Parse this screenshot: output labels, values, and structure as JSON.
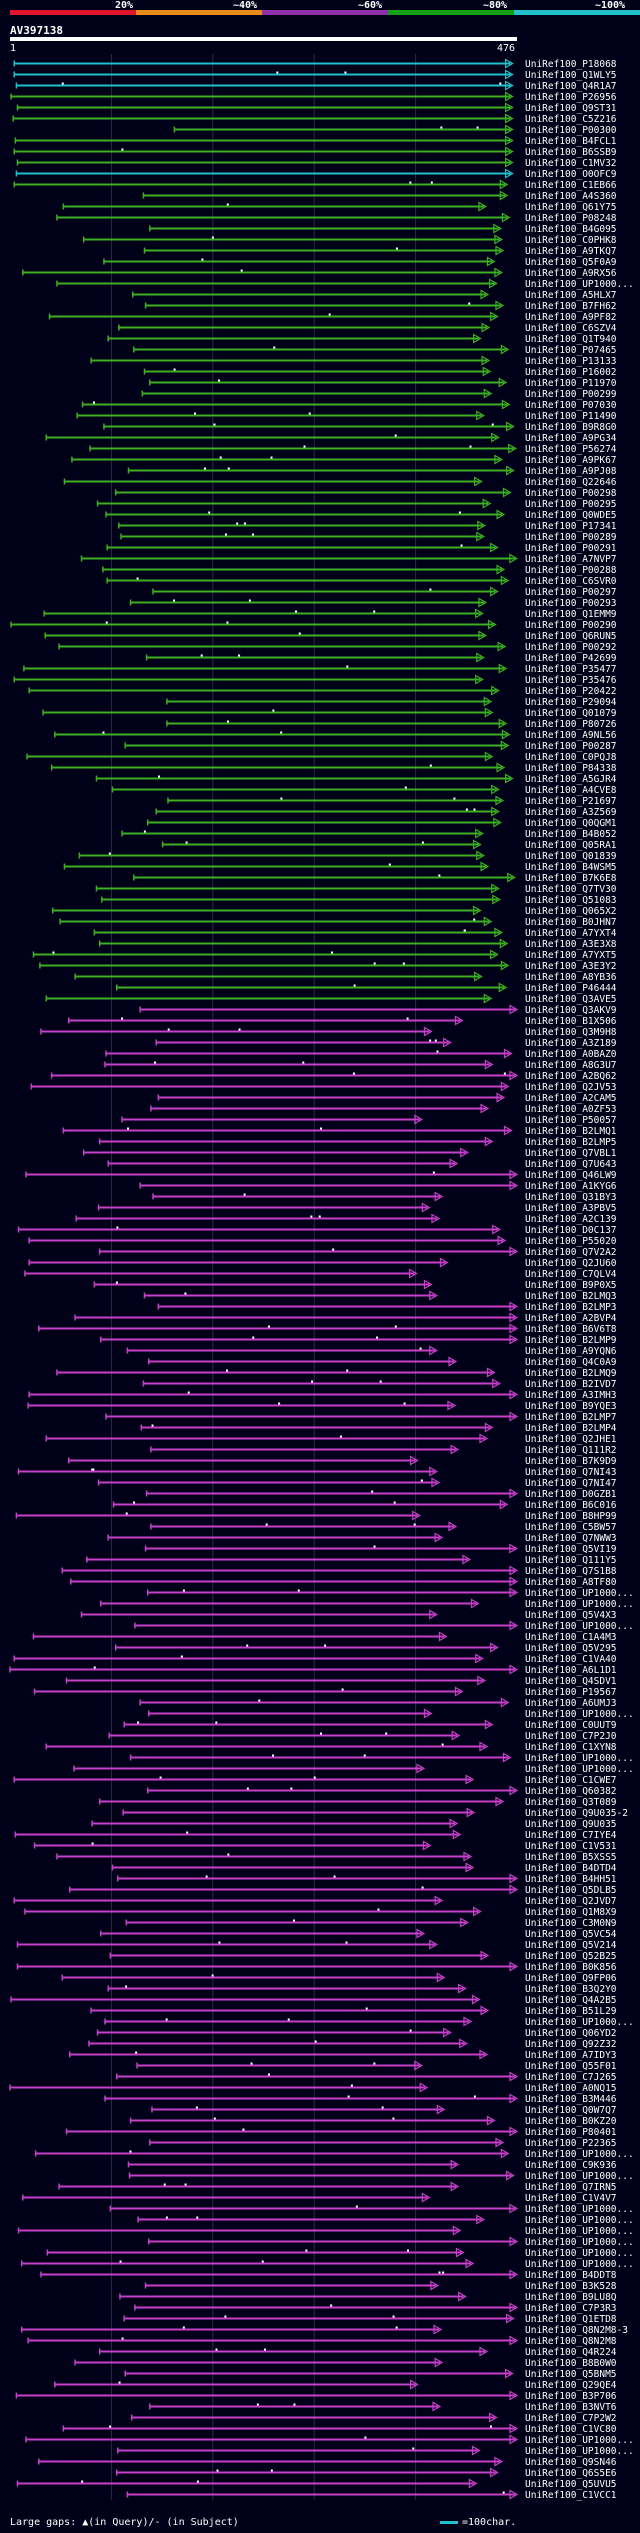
{
  "header": {
    "query_id": "AV397138",
    "query_start": "1",
    "query_end": "476",
    "identity_labels": [
      "20%",
      "~40%",
      "~60%",
      "~80%",
      "~100%"
    ],
    "identity_colors": [
      "#e0162a",
      "#e88a1c",
      "#8e2ea8",
      "#12a012",
      "#22c0c8"
    ]
  },
  "footer": {
    "gap_note": "Large gaps: ▲(in Query)/- (in Subject)",
    "scale_label": "=100char."
  },
  "colors": {
    "cyan": "#22c0c8",
    "green": "#3cb022",
    "magenta": "#c840c8",
    "background": "#000018",
    "grid": "#2a2a4a"
  },
  "chart_data": {
    "type": "table",
    "title": "AV397138",
    "query_length": 476,
    "x_range": [
      1,
      476
    ],
    "scale_unit": 100,
    "color_groups_by_row_range": [
      {
        "from": 0,
        "to": 3,
        "color": "cyan"
      },
      {
        "from": 3,
        "to": 10,
        "color": "green"
      },
      {
        "from": 10,
        "to": 11,
        "color": "cyan"
      },
      {
        "from": 11,
        "to": 86,
        "color": "green"
      },
      {
        "from": 86,
        "to": 149,
        "color": "magenta"
      }
    ],
    "hits": [
      "UniRef100_P18068",
      "UniRef100_Q1WLY5",
      "UniRef100_Q4R1A7",
      "UniRef100_P26956",
      "UniRef100_Q9ST31",
      "UniRef100_C5Z216",
      "UniRef100_P00300",
      "UniRef100_B4FCL1",
      "UniRef100_B6SSB9",
      "UniRef100_C1MV32",
      "UniRef100_O0OFC9",
      "UniRef100_C1EB66",
      "UniRef100_A4S360",
      "UniRef100_Q61Y75",
      "UniRef100_P08248",
      "UniRef100_B4G095",
      "UniRef100_C0PHK8",
      "UniRef100_A9TKQ7",
      "UniRef100_Q5F0A9",
      "UniRef100_A9RX56",
      "UniRef100_UP1000...",
      "UniRef100_A5HLX7",
      "UniRef100_B7FH62",
      "UniRef100_A9PF82",
      "UniRef100_C6SZV4",
      "UniRef100_Q1T940",
      "UniRef100_P07465",
      "UniRef100_P13133",
      "UniRef100_P16002",
      "UniRef100_P11970",
      "UniRef100_P00299",
      "UniRef100_P07030",
      "UniRef100_P11490",
      "UniRef100_B9R8G0",
      "UniRef100_A9PG34",
      "UniRef100_P56274",
      "UniRef100_A9PK67",
      "UniRef100_A9PJ08",
      "UniRef100_Q22646",
      "UniRef100_P00298",
      "UniRef100_P00295",
      "UniRef100_Q0WDE5",
      "UniRef100_P17341",
      "UniRef100_P00289",
      "UniRef100_P00291",
      "UniRef100_A7NVP7",
      "UniRef100_P00288",
      "UniRef100_C6SVR0",
      "UniRef100_P00297",
      "UniRef100_P00293",
      "UniRef100_Q1EMM9",
      "UniRef100_P00290",
      "UniRef100_Q6RUN5",
      "UniRef100_P00292",
      "UniRef100_P42699",
      "UniRef100_P35477",
      "UniRef100_P35476",
      "UniRef100_P20422",
      "UniRef100_P29094",
      "UniRef100_Q01079",
      "UniRef100_P80726",
      "UniRef100_A9NL56",
      "UniRef100_P00287",
      "UniRef100_C0PQJ8",
      "UniRef100_P84338",
      "UniRef100_A5GJR4",
      "UniRef100_A4CVE8",
      "UniRef100_P21697",
      "UniRef100_A3Z569",
      "UniRef100_Q0QGM1",
      "UniRef100_B4B052",
      "UniRef100_Q05RA1",
      "UniRef100_Q01839",
      "UniRef100_B4WSM5",
      "UniRef100_B7K6E8",
      "UniRef100_Q7TV30",
      "UniRef100_Q51083",
      "UniRef100_Q065X2",
      "UniRef100_B0JHN7",
      "UniRef100_A7YXT4",
      "UniRef100_A3E3X8",
      "UniRef100_A7YXT5",
      "UniRef100_A3E3Y2",
      "UniRef100_A8YB36",
      "UniRef100_P46444",
      "UniRef100_Q3AVE5",
      "UniRef100_Q3AKV9",
      "UniRef100_B1X506",
      "UniRef100_Q3M9H8",
      "UniRef100_A3Z189",
      "UniRef100_A0BAZ0",
      "UniRef100_A8G3U7",
      "UniRef100_A2BQ62",
      "UniRef100_Q2JV53",
      "UniRef100_A2CAM5",
      "UniRef100_A0ZF53",
      "UniRef100_P50057",
      "UniRef100_B2LMQ1",
      "UniRef100_B2LMP5",
      "UniRef100_Q7VBL1",
      "UniRef100_Q7U643",
      "UniRef100_Q46LW9",
      "UniRef100_A1KYG6",
      "UniRef100_Q31BY3",
      "UniRef100_A3PBV5",
      "UniRef100_A2C139",
      "UniRef100_D0C137",
      "UniRef100_P55020",
      "UniRef100_Q7V2A2",
      "UniRef100_Q2JU60",
      "UniRef100_C7QLV4",
      "UniRef100_B9P0X5",
      "UniRef100_B2LMQ3",
      "UniRef100_B2LMP3",
      "UniRef100_A2BVP4",
      "UniRef100_B6V6T8",
      "UniRef100_B2LMP9",
      "UniRef100_A9YQN6",
      "UniRef100_Q4C0A9",
      "UniRef100_B2LMQ9",
      "UniRef100_B2IVD7",
      "UniRef100_A3IMH3",
      "UniRef100_B9YQE3",
      "UniRef100_B2LMP7",
      "UniRef100_B2LMP4",
      "UniRef100_Q2JHE1",
      "UniRef100_Q111R2",
      "UniRef100_B7K9D9",
      "UniRef100_Q7NI43",
      "UniRef100_Q7NI47",
      "UniRef100_D0GZB1",
      "UniRef100_B6C016",
      "UniRef100_B8HP99",
      "UniRef100_C5BW57",
      "UniRef100_Q7NWW3",
      "UniRef100_Q5VI19",
      "UniRef100_Q111Y5",
      "UniRef100_Q7S1B8",
      "UniRef100_A8TF80",
      "UniRef100_UP1000...",
      "UniRef100_UP1000...",
      "UniRef100_Q5V4X3",
      "UniRef100_UP1000...",
      "UniRef100_C1A4M3",
      "UniRef100_Q5V295",
      "UniRef100_C1VA40",
      "UniRef100_A6L1D1",
      "UniRef100_Q4SDV1",
      "UniRef100_P19567",
      "UniRef100_A6UMJ3",
      "UniRef100_UP1000...",
      "UniRef100_C0UUT9",
      "UniRef100_C7P2J0",
      "UniRef100_C1XYN8",
      "UniRef100_UP1000...",
      "UniRef100_UP1000...",
      "UniRef100_C1CWE7",
      "UniRef100_Q60382",
      "UniRef100_Q3T089",
      "UniRef100_Q9U035-2",
      "UniRef100_Q9U035",
      "UniRef100_C7IYE4",
      "UniRef100_C1V531",
      "UniRef100_B5XSS5",
      "UniRef100_B4DTD4",
      "UniRef100_B4HH51",
      "UniRef100_Q5DLB5",
      "UniRef100_Q2JVD7",
      "UniRef100_Q1M8X9",
      "UniRef100_C3M0N9",
      "UniRef100_Q5VC54",
      "UniRef100_Q5V214",
      "UniRef100_Q52B25",
      "UniRef100_B0K856",
      "UniRef100_Q9FP06",
      "UniRef100_B3Q2Y0",
      "UniRef100_Q4A2B5",
      "UniRef100_B51L29",
      "UniRef100_UP1000...",
      "UniRef100_Q06YD2",
      "UniRef100_Q92Z32",
      "UniRef100_A7IDY3",
      "UniRef100_Q55F01",
      "UniRef100_C7J265",
      "UniRef100_A0NQ15",
      "UniRef100_B3M446",
      "UniRef100_Q0W7Q7",
      "UniRef100_B0KZ20",
      "UniRef100_P80401",
      "UniRef100_P22365",
      "UniRef100_UP1000...",
      "UniRef100_C9K936",
      "UniRef100_UP1000...",
      "UniRef100_Q7IRN5",
      "UniRef100_C1V4V7",
      "UniRef100_UP1000...",
      "UniRef100_UP1000...",
      "UniRef100_UP1000...",
      "UniRef100_UP1000...",
      "UniRef100_UP1000...",
      "UniRef100_UP1000...",
      "UniRef100_B4DDT8",
      "UniRef100_B3K528",
      "UniRef100_B9LU8Q",
      "UniRef100_C7P3R3",
      "UniRef100_Q1ETD8",
      "UniRef100_Q8N2M8-3",
      "UniRef100_Q8N2M8",
      "UniRef100_Q4R224",
      "UniRef100_B8B0W0",
      "UniRef100_Q5BNM5",
      "UniRef100_Q29QE4",
      "UniRef100_B3P706",
      "UniRef100_B3NVT6",
      "UniRef100_C7P2W2",
      "UniRef100_C1VC80",
      "UniRef100_UP1000...",
      "UniRef100_UP1000...",
      "UniRef100_Q9SN46",
      "UniRef100_Q6S5E6",
      "UniRef100_Q5UVU5",
      "UniRef100_C1VCC1"
    ]
  }
}
